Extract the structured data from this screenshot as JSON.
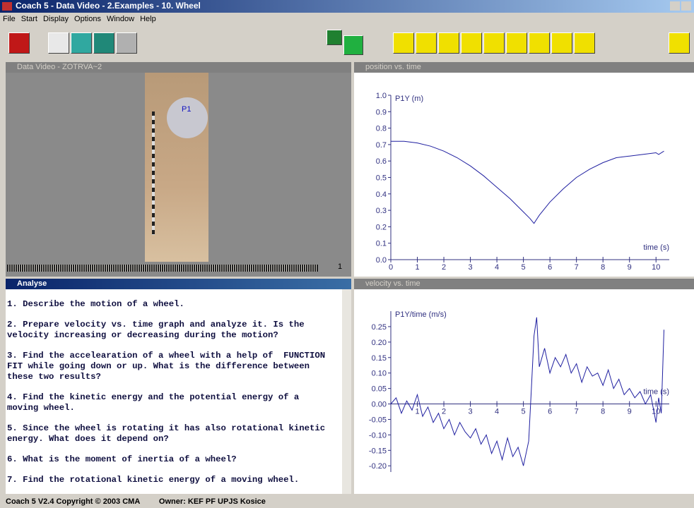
{
  "window": {
    "title": "Coach 5 - Data Video - 2.Examples - 10. Wheel",
    "menu": [
      "File",
      "Start",
      "Display",
      "Options",
      "Window",
      "Help"
    ]
  },
  "video": {
    "title": "Data Video - ZOTRVA~2",
    "point_label": "P1",
    "frame": "1"
  },
  "analyse": {
    "title": "Analyse",
    "paragraphs": [
      [
        "1. Describe the motion of a wheel."
      ],
      [
        "2. Prepare velocity vs. time graph and analyze it. Is the",
        "velocity increasing or decreasing during the motion?"
      ],
      [
        "3. Find the accelearation of a wheel with a help of  FUNCTION",
        "FIT while going down or up. What is the difference between",
        "these two results?"
      ],
      [
        "4. Find the kinetic energy and the potential energy of a",
        "moving wheel."
      ],
      [
        "5. Since the wheel is rotating it has also rotational kinetic",
        "energy. What does it depend on?"
      ],
      [
        "6. What is the moment of inertia of a wheel?"
      ],
      [
        "7. Find the rotational kinetic energy of a moving wheel."
      ]
    ]
  },
  "chart_data": [
    {
      "type": "line",
      "title": "position vs. time",
      "y_label": "P1Y (m)",
      "x_label": "time (s)",
      "color": "#1f1fa0",
      "x": [
        0,
        0.5,
        1,
        1.5,
        2,
        2.5,
        3,
        3.5,
        4,
        4.5,
        5,
        5.25,
        5.4,
        5.6,
        6,
        6.5,
        7,
        7.5,
        8,
        8.5,
        9,
        9.5,
        10,
        10.1,
        10.3
      ],
      "values": [
        0.72,
        0.72,
        0.71,
        0.69,
        0.66,
        0.62,
        0.57,
        0.51,
        0.44,
        0.37,
        0.29,
        0.25,
        0.22,
        0.27,
        0.35,
        0.43,
        0.5,
        0.55,
        0.59,
        0.62,
        0.63,
        0.64,
        0.65,
        0.64,
        0.66
      ],
      "xlim": [
        0,
        10.5
      ],
      "ylim": [
        0,
        1
      ],
      "xticks": [
        0,
        1,
        2,
        3,
        4,
        5,
        6,
        7,
        8,
        9,
        10
      ],
      "yticks": [
        {
          "value": 0,
          "label": "0.0"
        },
        0.1,
        0.2,
        0.3,
        0.4,
        0.5,
        0.6,
        0.7,
        0.8,
        0.9,
        {
          "value": 1,
          "label": "1.0"
        }
      ]
    },
    {
      "type": "line",
      "title": "velocity vs. time",
      "y_label": "P1Y/time (m/s)",
      "x_label": "time (s)",
      "color": "#1f1fa0",
      "x": [
        0,
        0.2,
        0.4,
        0.6,
        0.8,
        1,
        1.2,
        1.4,
        1.6,
        1.8,
        2,
        2.2,
        2.4,
        2.6,
        2.8,
        3,
        3.2,
        3.4,
        3.6,
        3.8,
        4,
        4.2,
        4.4,
        4.6,
        4.8,
        5,
        5.2,
        5.3,
        5.4,
        5.5,
        5.6,
        5.8,
        6,
        6.2,
        6.4,
        6.6,
        6.8,
        7,
        7.2,
        7.4,
        7.6,
        7.8,
        8,
        8.2,
        8.4,
        8.6,
        8.8,
        9,
        9.2,
        9.4,
        9.6,
        9.8,
        10,
        10.1,
        10.2,
        10.3
      ],
      "values": [
        0,
        0.02,
        -0.03,
        0.01,
        -0.02,
        0.03,
        -0.04,
        -0.01,
        -0.06,
        -0.03,
        -0.08,
        -0.05,
        -0.1,
        -0.06,
        -0.09,
        -0.11,
        -0.08,
        -0.13,
        -0.1,
        -0.16,
        -0.12,
        -0.18,
        -0.11,
        -0.17,
        -0.14,
        -0.2,
        -0.12,
        0.05,
        0.22,
        0.28,
        0.12,
        0.18,
        0.1,
        0.15,
        0.12,
        0.16,
        0.1,
        0.13,
        0.07,
        0.12,
        0.09,
        0.1,
        0.06,
        0.11,
        0.05,
        0.08,
        0.03,
        0.05,
        0.02,
        0.04,
        0,
        0.03,
        -0.06,
        0.02,
        -0.03,
        0.24
      ],
      "xlim": [
        0,
        10.5
      ],
      "ylim": [
        -0.22,
        0.3
      ],
      "xticks": [
        1,
        2,
        3,
        4,
        5,
        6,
        7,
        8,
        9,
        10
      ],
      "yticks": [
        {
          "value": -0.2,
          "label": "-0.20"
        },
        {
          "value": -0.15,
          "label": "-0.15"
        },
        {
          "value": -0.1,
          "label": "-0.10"
        },
        -0.05,
        {
          "value": 0,
          "label": "0.00"
        },
        0.05,
        {
          "value": 0.1,
          "label": "0.10"
        },
        0.15,
        {
          "value": 0.2,
          "label": "0.20"
        },
        0.25
      ]
    }
  ],
  "status": {
    "copyright": "Coach 5 V2.4 Copyright © 2003 CMA",
    "owner": "Owner: KEF PF UPJS Kosice"
  }
}
